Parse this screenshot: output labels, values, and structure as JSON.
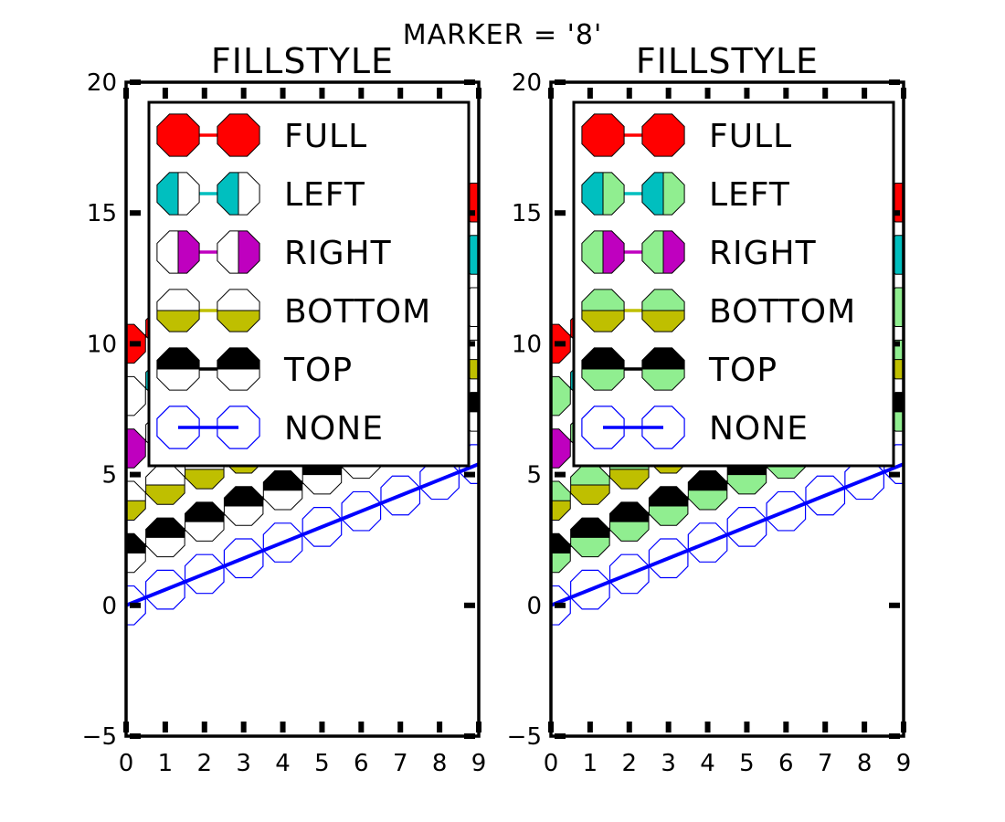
{
  "chart_data": {
    "type": "line",
    "suptitle": "MARKER = '8'",
    "marker": "8",
    "xlim": [
      0,
      9
    ],
    "ylim": [
      -5,
      20
    ],
    "xticks": [
      "0",
      "1",
      "2",
      "3",
      "4",
      "5",
      "6",
      "7",
      "8",
      "9"
    ],
    "yticks": [
      "20",
      "15",
      "10",
      "5",
      "0",
      "-5"
    ],
    "xtick_values": [
      0,
      1,
      2,
      3,
      4,
      5,
      6,
      7,
      8,
      9
    ],
    "ytick_values": [
      20,
      15,
      10,
      5,
      0,
      -5
    ],
    "x": [
      0,
      1,
      2,
      3,
      4,
      5,
      6,
      7,
      8,
      9
    ],
    "y_base": [
      0,
      0.6,
      1.2,
      1.8,
      2.4,
      3.0,
      3.6,
      4.2,
      4.8,
      5.4
    ],
    "series": [
      {
        "name": "FULL",
        "fillstyle": "full",
        "color": "#ff0000",
        "offset": 10
      },
      {
        "name": "LEFT",
        "fillstyle": "left",
        "color": "#00bfbf",
        "offset": 8
      },
      {
        "name": "RIGHT",
        "fillstyle": "right",
        "color": "#bf00bf",
        "offset": 6
      },
      {
        "name": "BOTTOM",
        "fillstyle": "bottom",
        "color": "#bfbf00",
        "offset": 4
      },
      {
        "name": "TOP",
        "fillstyle": "top",
        "color": "#000000",
        "offset": 2
      },
      {
        "name": "NONE",
        "fillstyle": "none",
        "color": "#0000ff",
        "offset": 0
      }
    ],
    "panels": [
      {
        "title": "FILLSTYLE",
        "fillstyle_alt": "#ffffff"
      },
      {
        "title": "FILLSTYLE",
        "fillstyle_alt": "#90ee90"
      }
    ],
    "legend_loc": "upper-left",
    "grid": false
  }
}
